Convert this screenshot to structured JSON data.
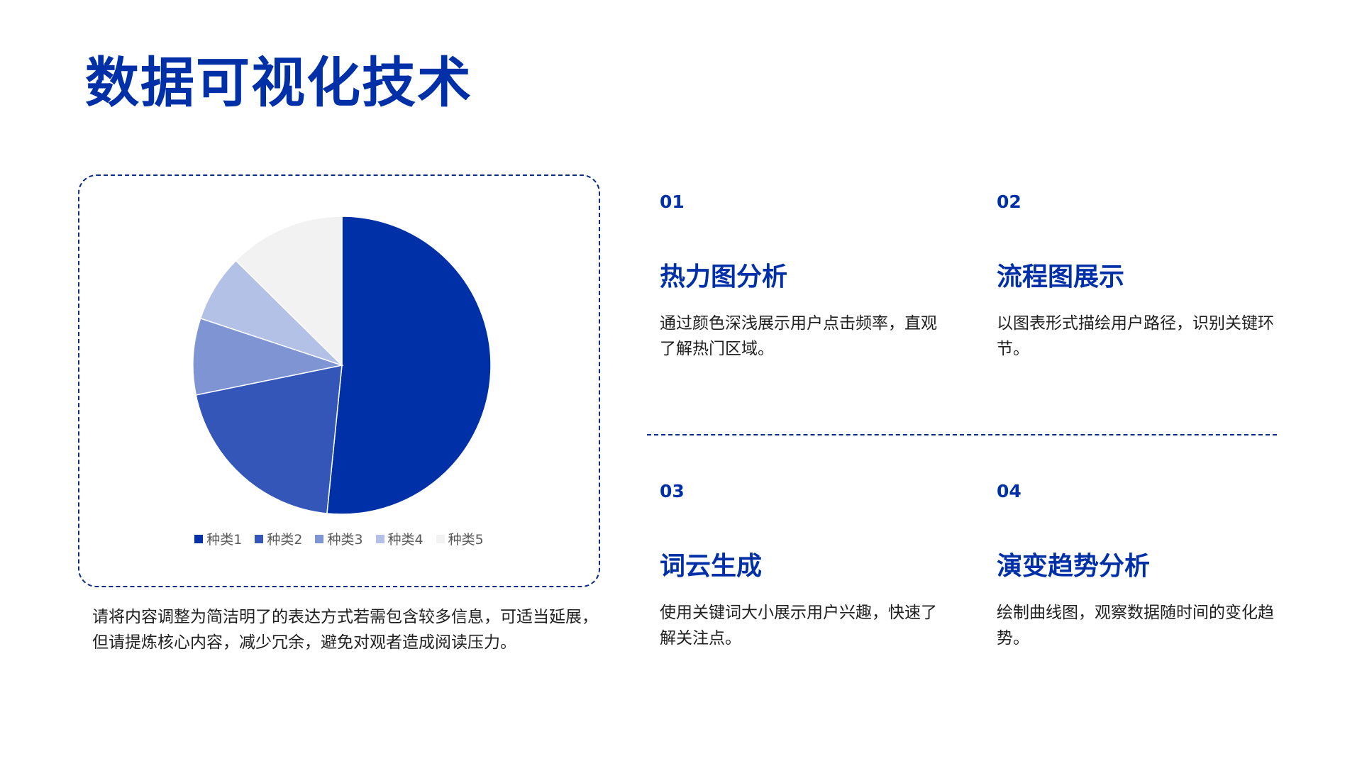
{
  "header": {
    "title": "数据可视化技术"
  },
  "chart_card": {
    "note": "请将内容调整为简洁明了的表达方式若需包含较多信息，可适当延展，但请提炼核心内容，减少冗余，避免对观者造成阅读压力。"
  },
  "chart_data": {
    "type": "pie",
    "categories": [
      "种类1",
      "种类2",
      "种类3",
      "种类4",
      "种类5"
    ],
    "values": [
      51.6,
      20.2,
      8.3,
      7.3,
      12.6
    ],
    "colors": [
      "#0030A8",
      "#3356B8",
      "#7F95D3",
      "#B3C1E6",
      "#F2F2F2"
    ],
    "legend": "bottom"
  },
  "items": [
    {
      "number": "01",
      "title": "热力图分析",
      "desc": "通过颜色深浅展示用户点击频率，直观了解热门区域。"
    },
    {
      "number": "02",
      "title": "流程图展示",
      "desc": "以图表形式描绘用户路径，识别关键环节。"
    },
    {
      "number": "03",
      "title": "词云生成",
      "desc": "使用关键词大小展示用户兴趣，快速了解关注点。"
    },
    {
      "number": "04",
      "title": "演变趋势分析",
      "desc": "绘制曲线图，观察数据随时间的变化趋势。"
    }
  ]
}
